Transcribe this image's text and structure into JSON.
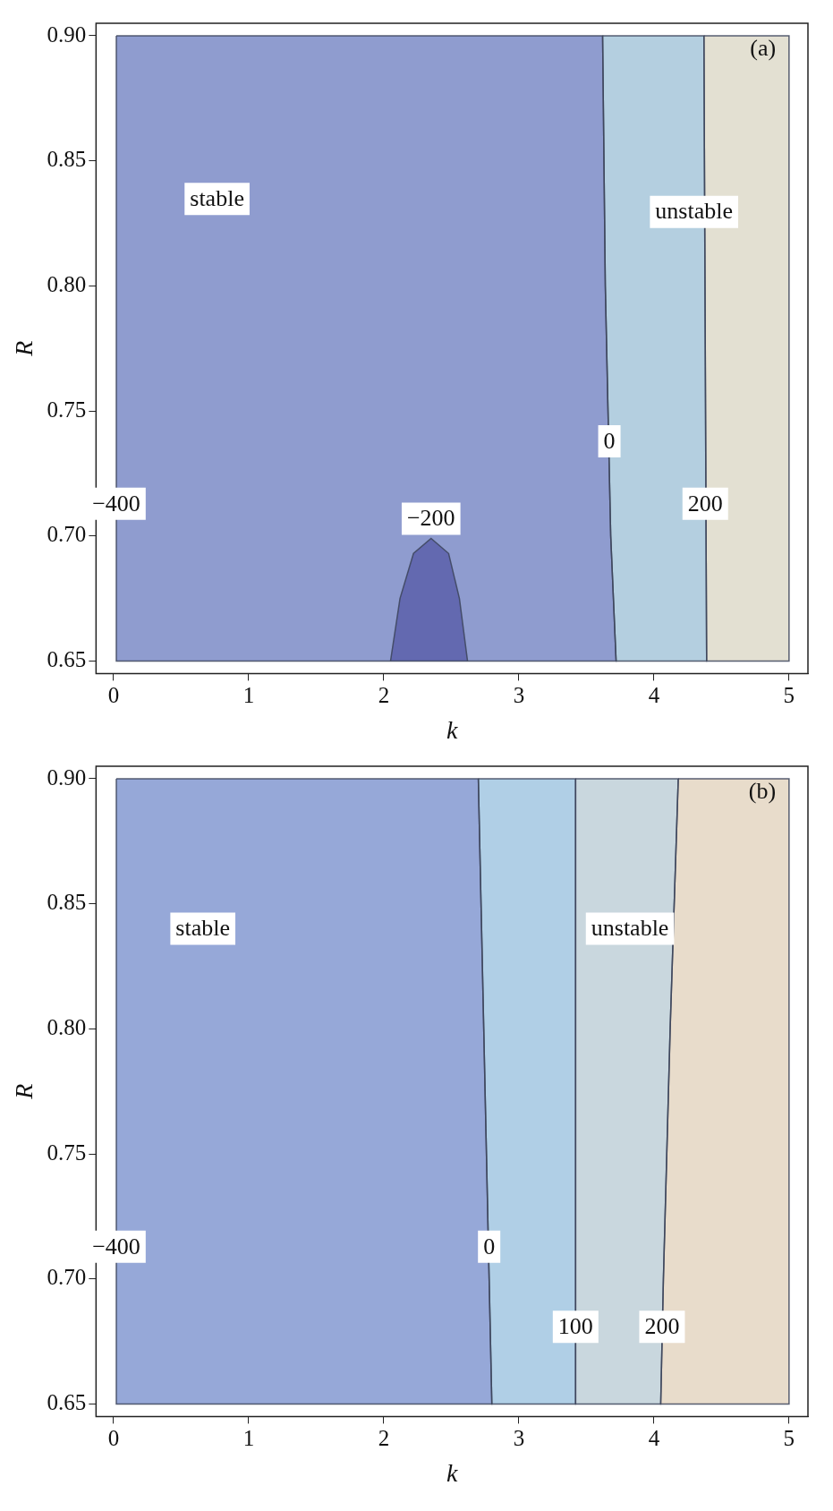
{
  "chart_data": [
    {
      "type": "area",
      "xlabel": "k",
      "ylabel": "R",
      "xlim": [
        -0.13,
        5.14
      ],
      "ylim": [
        0.645,
        0.905
      ],
      "xticks": [
        0,
        1,
        2,
        3,
        4,
        5
      ],
      "yticks": [
        {
          "value": 0.65,
          "label": "0.65"
        },
        {
          "value": 0.7,
          "label": "0.70"
        },
        {
          "value": 0.75,
          "label": "0.75"
        },
        {
          "value": 0.8,
          "label": "0.80"
        },
        {
          "value": 0.85,
          "label": "0.85"
        },
        {
          "value": 0.9,
          "label": "0.90"
        }
      ],
      "grid": false,
      "legend": false,
      "series": [
        {
          "color": "#8f9ccf",
          "x": [
            0.02,
            0.02,
            0.02,
            3.72,
            3.68,
            3.66,
            3.64,
            3.62,
            0.02
          ],
          "values": [
            0.9,
            0.705,
            0.65,
            0.65,
            0.7,
            0.75,
            0.8,
            0.9,
            0.9
          ]
        },
        {
          "color": "#b4cfe0",
          "x": [
            3.62,
            3.64,
            3.66,
            3.68,
            3.72,
            4.39,
            4.37,
            3.62
          ],
          "values": [
            0.9,
            0.8,
            0.75,
            0.7,
            0.65,
            0.65,
            0.9,
            0.9
          ]
        },
        {
          "color": "#e3e0d2",
          "x": [
            4.37,
            4.39,
            5,
            5,
            4.37
          ],
          "values": [
            0.9,
            0.65,
            0.65,
            0.9,
            0.9
          ]
        },
        {
          "color": "#6369b0",
          "x": [
            2.05,
            2.12,
            2.22,
            2.35,
            2.48,
            2.56,
            2.62
          ],
          "values": [
            0.65,
            0.675,
            0.693,
            0.699,
            0.693,
            0.675,
            0.65
          ]
        }
      ],
      "annotations": [
        "stable",
        "unstable",
        {
          "text": "0",
          "x": 3.67,
          "y": 0.73
        },
        {
          "text": "−400",
          "x": 0.02,
          "y": 0.705
        },
        {
          "text": "−200",
          "x": 2.35,
          "y": 0.699
        },
        {
          "text": "200",
          "x": 4.38,
          "y": 0.705
        },
        "(a)"
      ]
    },
    {
      "type": "area",
      "xlabel": "k",
      "ylabel": "R",
      "xlim": [
        -0.13,
        5.14
      ],
      "ylim": [
        0.645,
        0.905
      ],
      "xticks": [
        0,
        1,
        2,
        3,
        4,
        5
      ],
      "yticks": [
        {
          "value": 0.65,
          "label": "0.65"
        },
        {
          "value": 0.7,
          "label": "0.70"
        },
        {
          "value": 0.75,
          "label": "0.75"
        },
        {
          "value": 0.8,
          "label": "0.80"
        },
        {
          "value": 0.85,
          "label": "0.85"
        },
        {
          "value": 0.9,
          "label": "0.90"
        }
      ],
      "grid": false,
      "legend": false,
      "series": [
        {
          "color": "#96a8d8",
          "x": [
            0.02,
            0.02,
            0.02,
            2.8,
            2.78,
            2.74,
            2.7,
            0.02
          ],
          "values": [
            0.9,
            0.705,
            0.65,
            0.65,
            0.7,
            0.8,
            0.9,
            0.9
          ]
        },
        {
          "color": "#b0cfe6",
          "x": [
            2.7,
            2.74,
            2.78,
            2.8,
            3.42,
            3.42,
            2.7
          ],
          "values": [
            0.9,
            0.8,
            0.7,
            0.65,
            0.65,
            0.9,
            0.9
          ]
        },
        {
          "color": "#c9d7de",
          "x": [
            3.42,
            3.42,
            4.05,
            4.07,
            4.12,
            4.18,
            3.42
          ],
          "values": [
            0.9,
            0.65,
            0.65,
            0.7,
            0.8,
            0.9,
            0.9
          ]
        },
        {
          "color": "#e8dccb",
          "x": [
            4.18,
            4.12,
            4.07,
            4.05,
            5,
            5,
            4.18
          ],
          "values": [
            0.9,
            0.8,
            0.7,
            0.65,
            0.65,
            0.9,
            0.9
          ]
        }
      ],
      "annotations": [
        "stable",
        "unstable",
        {
          "text": "−400",
          "x": 0.02,
          "y": 0.705
        },
        {
          "text": "0",
          "x": 2.78,
          "y": 0.705
        },
        {
          "text": "100",
          "x": 3.42,
          "y": 0.673
        },
        {
          "text": "200",
          "x": 4.06,
          "y": 0.673
        },
        "(b)"
      ]
    }
  ]
}
